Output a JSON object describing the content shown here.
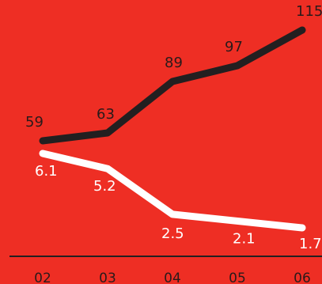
{
  "chart_data": {
    "type": "line",
    "categories": [
      "02",
      "03",
      "04",
      "05",
      "06"
    ],
    "series": [
      {
        "values": [
          59,
          63,
          89,
          97,
          115
        ],
        "labels": [
          "59",
          "63",
          "89",
          "97",
          "115"
        ],
        "color": "#231f20"
      },
      {
        "values": [
          6.1,
          5.2,
          2.5,
          2.1,
          1.7
        ],
        "labels": [
          "6.1",
          "5.2",
          "2.5",
          "2.1",
          "1.7"
        ],
        "color": "#ffffff"
      }
    ],
    "background": "#ee2e24",
    "label_color_dark": "#2a1a1a",
    "label_color_light": "#ffffff",
    "axis_color": "#231f20",
    "grid": false,
    "legend": "none"
  }
}
